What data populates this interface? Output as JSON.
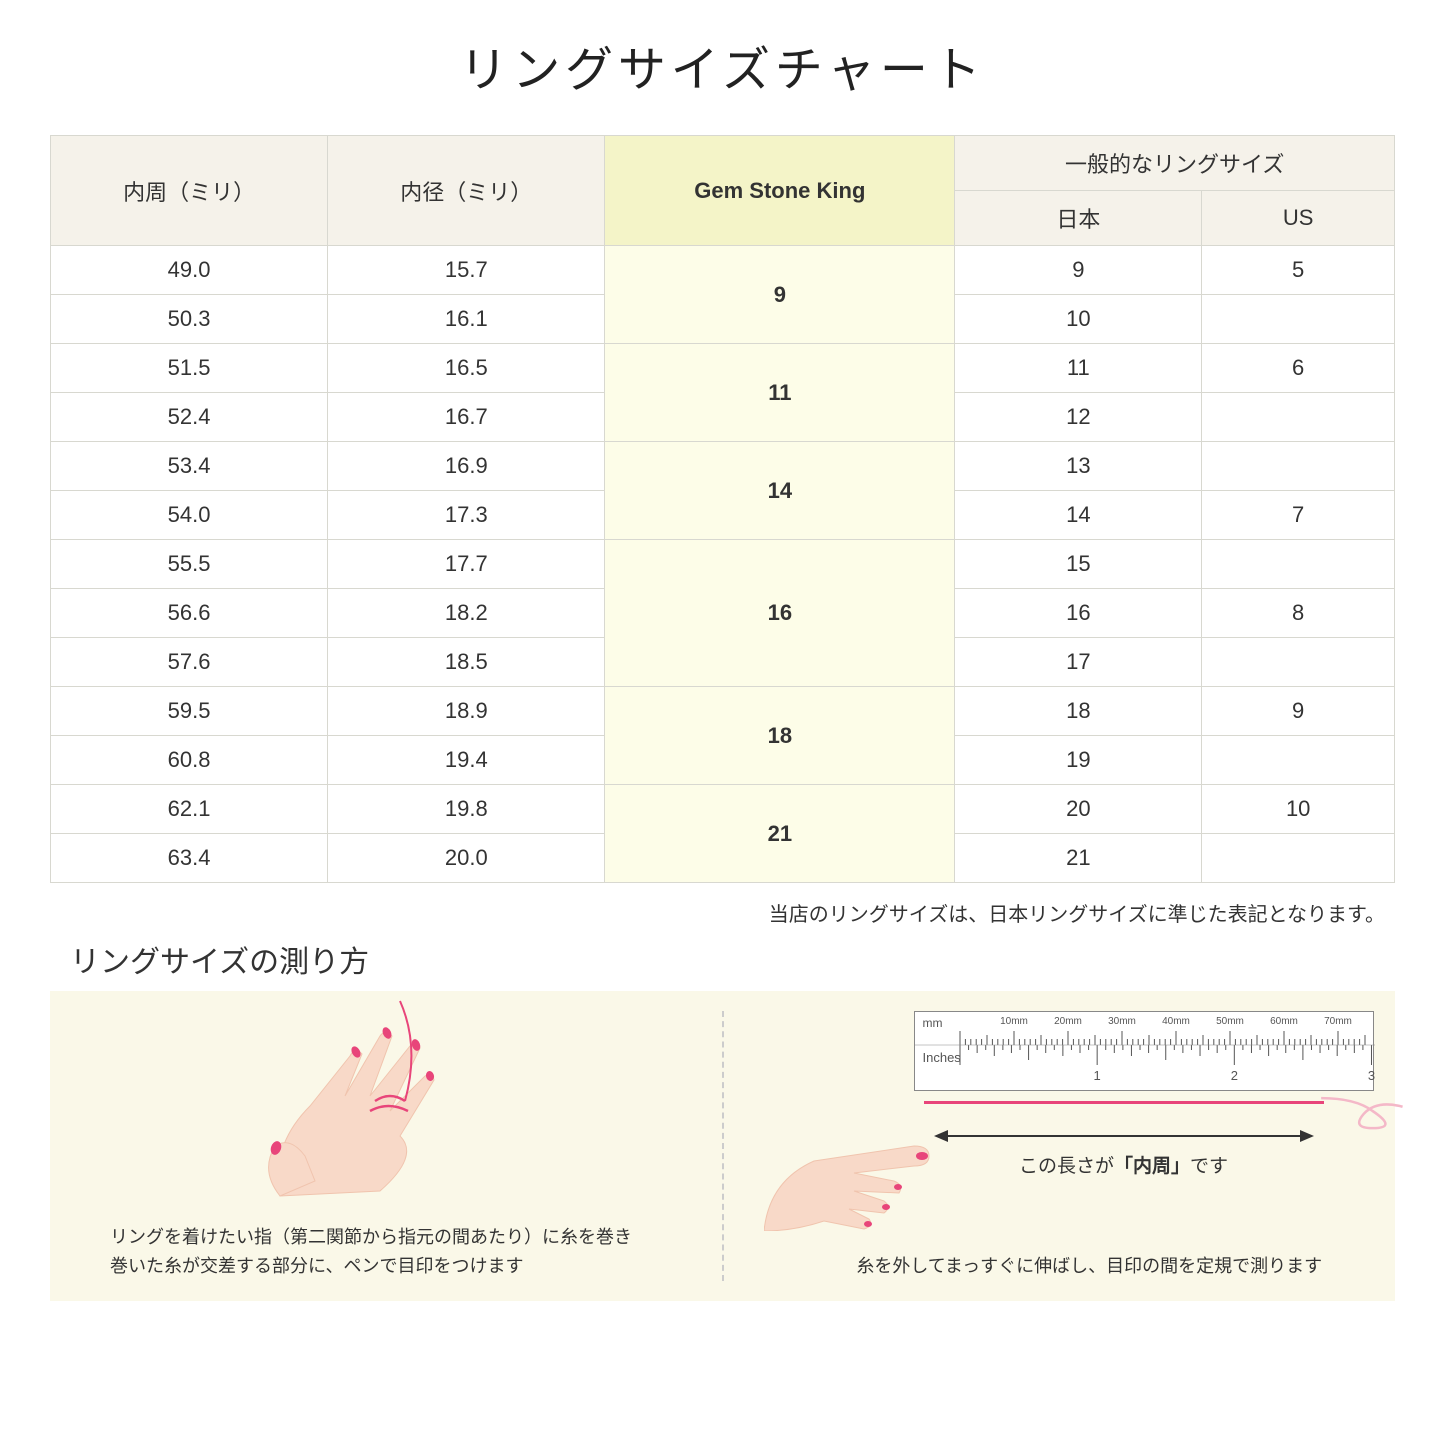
{
  "title": "リングサイズチャート",
  "headers": {
    "circumference": "内周（ミリ）",
    "diameter": "内径（ミリ）",
    "gsk": "Gem Stone King",
    "general": "一般的なリングサイズ",
    "japan": "日本",
    "us": "US"
  },
  "groups": [
    {
      "gsk": "9",
      "rows": [
        {
          "c": "49.0",
          "d": "15.7",
          "jp": "9",
          "us": "5"
        },
        {
          "c": "50.3",
          "d": "16.1",
          "jp": "10",
          "us": ""
        }
      ]
    },
    {
      "gsk": "11",
      "rows": [
        {
          "c": "51.5",
          "d": "16.5",
          "jp": "11",
          "us": "6"
        },
        {
          "c": "52.4",
          "d": "16.7",
          "jp": "12",
          "us": ""
        }
      ]
    },
    {
      "gsk": "14",
      "rows": [
        {
          "c": "53.4",
          "d": "16.9",
          "jp": "13",
          "us": ""
        },
        {
          "c": "54.0",
          "d": "17.3",
          "jp": "14",
          "us": "7"
        }
      ]
    },
    {
      "gsk": "16",
      "rows": [
        {
          "c": "55.5",
          "d": "17.7",
          "jp": "15",
          "us": ""
        },
        {
          "c": "56.6",
          "d": "18.2",
          "jp": "16",
          "us": "8"
        },
        {
          "c": "57.6",
          "d": "18.5",
          "jp": "17",
          "us": ""
        }
      ]
    },
    {
      "gsk": "18",
      "rows": [
        {
          "c": "59.5",
          "d": "18.9",
          "jp": "18",
          "us": "9"
        },
        {
          "c": "60.8",
          "d": "19.4",
          "jp": "19",
          "us": ""
        }
      ]
    },
    {
      "gsk": "21",
      "rows": [
        {
          "c": "62.1",
          "d": "19.8",
          "jp": "20",
          "us": "10"
        },
        {
          "c": "63.4",
          "d": "20.0",
          "jp": "21",
          "us": ""
        }
      ]
    }
  ],
  "note": "当店のリングサイズは、日本リングサイズに準じた表記となります。",
  "subtitle": "リングサイズの測り方",
  "instruction_left_line1": "リングを着けたい指（第二関節から指元の間あたり）に糸を巻き",
  "instruction_left_line2": "巻いた糸が交差する部分に、ペンで目印をつけます",
  "instruction_right": "糸を外してまっすぐに伸ばし、目印の間を定規で測ります",
  "arrow_label_prefix": "この長さが",
  "arrow_label_bold": "「内周」",
  "arrow_label_suffix": "です",
  "ruler_mm_label": "mm",
  "ruler_in_label": "Inches",
  "ruler_mm_marks": [
    "10mm",
    "20mm",
    "30mm",
    "40mm",
    "50mm",
    "60mm",
    "70mm"
  ],
  "colors": {
    "header_bg": "#f5f2ea",
    "gsk_header_bg": "#f4f4c8",
    "gsk_cell_bg": "#fdfde8",
    "border": "#d8d8d0",
    "instruction_bg": "#faf8e8",
    "skin": "#f8d9c8",
    "skin_dark": "#f0c4ae",
    "nail": "#e8457a",
    "thread": "#e8457a"
  }
}
